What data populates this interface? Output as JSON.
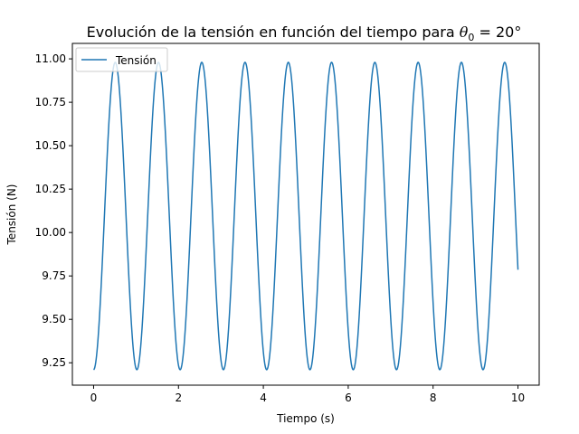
{
  "chart_data": {
    "type": "line",
    "title_text": "Evolución de la tensión en función del tiempo para ",
    "title_math_symbol": "θ",
    "title_math_sub": "0",
    "title_math_rest": " = 20°",
    "xlabel": "Tiempo (s)",
    "ylabel": "Tensión (N)",
    "xlim": [
      -0.5,
      10.5
    ],
    "ylim": [
      9.121,
      11.089
    ],
    "xticks": [
      0,
      2,
      4,
      6,
      8,
      10
    ],
    "xtick_labels": [
      "0",
      "2",
      "4",
      "6",
      "8",
      "10"
    ],
    "yticks": [
      9.25,
      9.5,
      9.75,
      10.0,
      10.25,
      10.5,
      10.75,
      11.0
    ],
    "ytick_labels": [
      "9.25",
      "9.50",
      "9.75",
      "10.00",
      "10.25",
      "10.50",
      "10.75",
      "11.00"
    ],
    "grid": false,
    "legend_position": "top-left",
    "series": [
      {
        "name": "Tensión",
        "color": "#1f77b4",
        "model": {
          "t_start": 0,
          "t_end": 10,
          "samples": 1000,
          "mean": 10.095,
          "amplitude": 0.885,
          "period": 1.0197
        }
      }
    ]
  }
}
